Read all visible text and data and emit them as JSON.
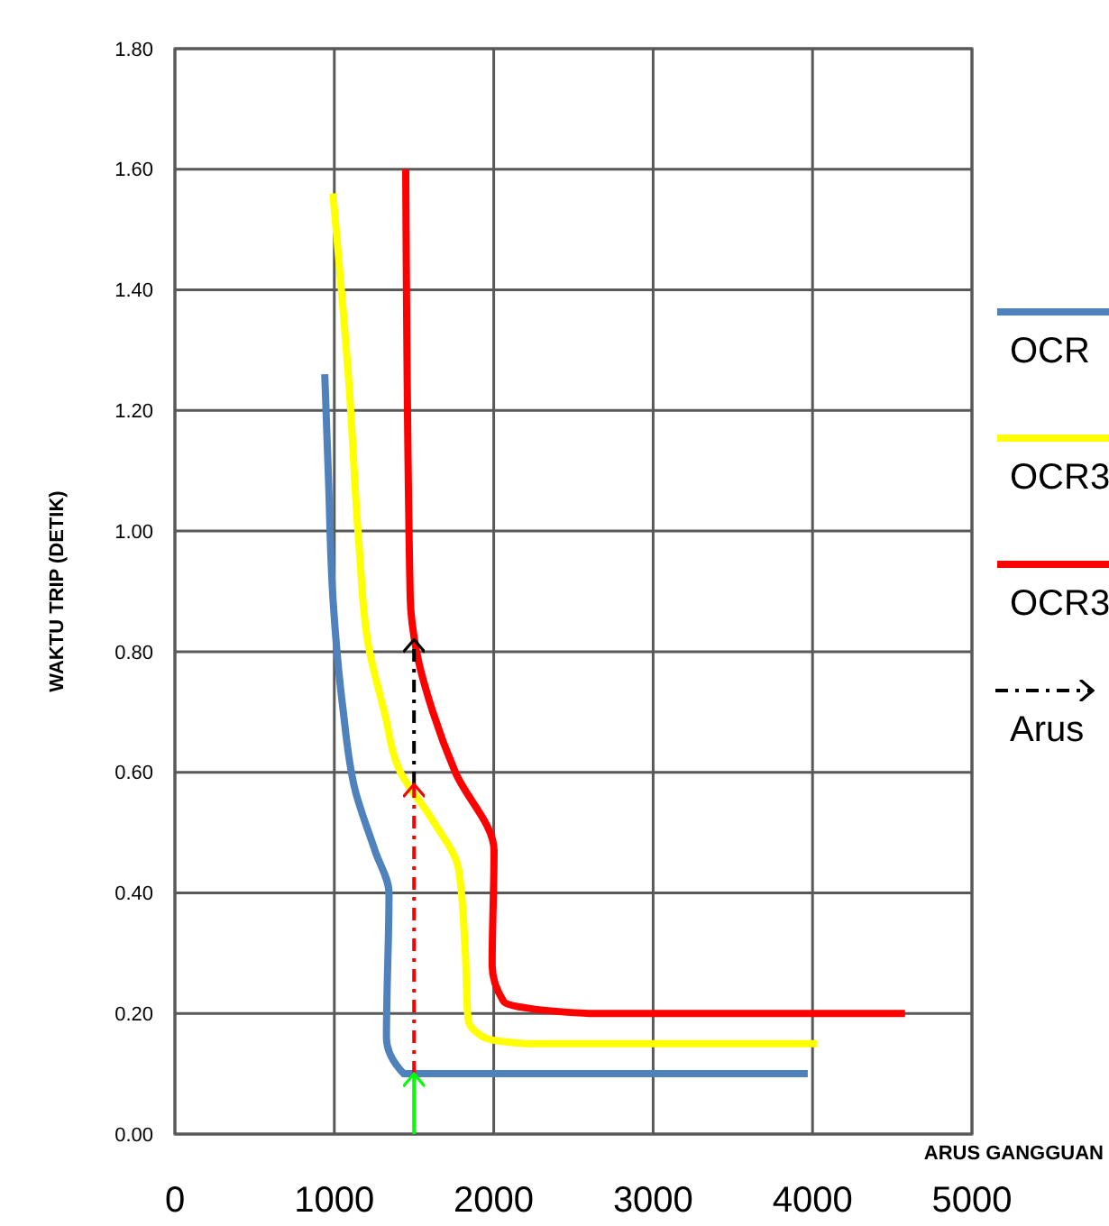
{
  "chart_data": {
    "type": "line",
    "xlabel": "ARUS GANGGUAN",
    "ylabel": "WAKTU TRIP (DETIK)",
    "xlim": [
      0,
      5000
    ],
    "xticks": [
      0,
      1000,
      2000,
      3000,
      4000,
      5000
    ],
    "ylim": [
      0,
      1.8
    ],
    "yticks": [
      {
        "value": 0,
        "label": "0.00"
      },
      {
        "value": 0.2,
        "label": "0.20"
      },
      {
        "value": 0.4,
        "label": "0.40"
      },
      {
        "value": 0.6,
        "label": "0.60"
      },
      {
        "value": 0.8,
        "label": "0.80"
      },
      {
        "value": 1,
        "label": "1.00"
      },
      {
        "value": 1.2,
        "label": "1.20"
      },
      {
        "value": 1.4,
        "label": "1.40"
      },
      {
        "value": 1.6,
        "label": "1.60"
      },
      {
        "value": 1.8,
        "label": "1.80"
      }
    ],
    "grid": true,
    "legend": "right",
    "series": [
      {
        "name": "OCR",
        "color": "#4f81bd",
        "x": [
          940,
          963,
          991,
          1052,
          1131,
          1255,
          1343,
          1327,
          1436,
          1538,
          2500,
          3970
        ],
        "values": [
          1.26,
          1.09,
          0.89,
          0.71,
          0.57,
          0.47,
          0.4,
          0.16,
          0.1,
          0.1,
          0.1,
          0.1
        ]
      },
      {
        "name": "OCR3",
        "color": "#ffff00",
        "x": [
          991,
          1093,
          1154,
          1214,
          1314,
          1415,
          1618,
          1779,
          1820,
          1839,
          1941,
          2200,
          3000,
          4030
        ],
        "values": [
          1.56,
          1.24,
          0.98,
          0.81,
          0.7,
          0.6,
          0.52,
          0.44,
          0.31,
          0.19,
          0.16,
          0.15,
          0.15,
          0.15
        ]
      },
      {
        "name": "OCR3",
        "color": "#ff0000",
        "x": [
          1448,
          1476,
          1516,
          1618,
          1759,
          2002,
          1990,
          2062,
          2183,
          2600,
          3500,
          4580
        ],
        "values": [
          1.6,
          0.89,
          0.8,
          0.7,
          0.6,
          0.47,
          0.28,
          0.22,
          0.21,
          0.2,
          0.2,
          0.2
        ]
      },
      {
        "name": "Arus",
        "color": "#000000",
        "line_style": "dashed",
        "x": [
          1500,
          1500
        ],
        "values": [
          0.58,
          0.82
        ]
      },
      {
        "color": "#ff0000",
        "line_style": "dashed",
        "x": [
          1500,
          1500
        ],
        "values": [
          0.1,
          0.58
        ]
      },
      {
        "color": "#00ff00",
        "line_style": "solid",
        "x": [
          1500,
          1500
        ],
        "values": [
          0,
          0.1
        ]
      }
    ]
  }
}
